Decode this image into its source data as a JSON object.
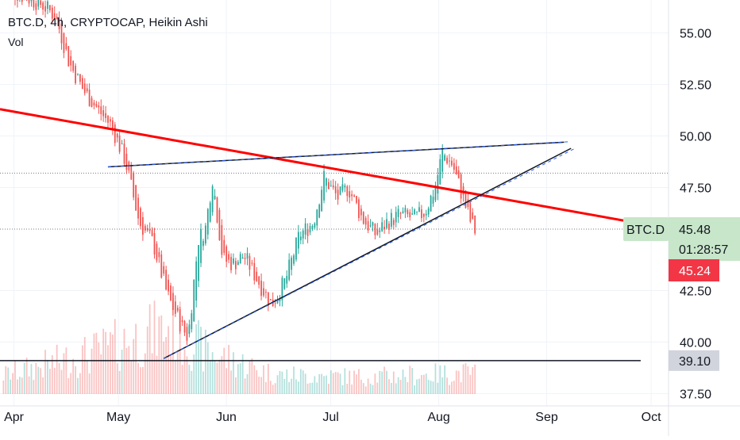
{
  "legend": {
    "symbol_line": "BTC.D, 4h, CRYPTOCAP, Heikin Ashi",
    "indicator": "Vol"
  },
  "chart_data": {
    "type": "candlestick",
    "chart_style": "Heikin Ashi",
    "symbol": "BTC.D",
    "timeframe": "4h",
    "exchange": "CRYPTOCAP",
    "indicator": "Vol",
    "x_ticks": [
      {
        "label": "Apr",
        "day": 0
      },
      {
        "label": "May",
        "day": 30
      },
      {
        "label": "Jun",
        "day": 61
      },
      {
        "label": "Jul",
        "day": 91
      },
      {
        "label": "Aug",
        "day": 122
      },
      {
        "label": "Sep",
        "day": 153
      },
      {
        "label": "Oct",
        "day": 183
      }
    ],
    "y_ticks": [
      37.5,
      40,
      42.5,
      47.5,
      50,
      52.5,
      55
    ],
    "ylim": [
      36.9,
      56.6
    ],
    "xlim": [
      -4,
      188
    ],
    "close_path": [
      [
        -3,
        57.2
      ],
      [
        8,
        56.4
      ],
      [
        12,
        55.8
      ],
      [
        16,
        53.5
      ],
      [
        20,
        52.2
      ],
      [
        25,
        51.1
      ],
      [
        28,
        50.5
      ],
      [
        32,
        48.8
      ],
      [
        36,
        45.8
      ],
      [
        40,
        44.8
      ],
      [
        44,
        42.3
      ],
      [
        48,
        40.8
      ],
      [
        50,
        40.2
      ],
      [
        53,
        45.0
      ],
      [
        55,
        45.5
      ],
      [
        57,
        48.0
      ],
      [
        60,
        44.0
      ],
      [
        63,
        43.8
      ],
      [
        66,
        44.2
      ],
      [
        70,
        43.0
      ],
      [
        74,
        41.8
      ],
      [
        78,
        43.0
      ],
      [
        82,
        45.2
      ],
      [
        86,
        45.8
      ],
      [
        89,
        48.0
      ],
      [
        93,
        47.0
      ],
      [
        96,
        47.5
      ],
      [
        100,
        46.0
      ],
      [
        104,
        45.2
      ],
      [
        107,
        45.8
      ],
      [
        111,
        46.2
      ],
      [
        115,
        46.0
      ],
      [
        118,
        46.3
      ],
      [
        121,
        47.5
      ],
      [
        123,
        49.2
      ],
      [
        126,
        48.6
      ],
      [
        128,
        47.5
      ],
      [
        131,
        45.9
      ],
      [
        133,
        45.2
      ]
    ],
    "volume": {
      "start_day": -3,
      "end_day": 133,
      "peak_values": [
        [
          -3,
          0.2
        ],
        [
          20,
          0.4
        ],
        [
          45,
          0.7
        ],
        [
          55,
          0.45
        ],
        [
          75,
          0.2
        ],
        [
          100,
          0.18
        ],
        [
          130,
          0.22
        ]
      ]
    },
    "trendlines": [
      {
        "name": "",
        "color": "#ff0000",
        "points": [
          [
            -4,
            51.3
          ],
          [
            175,
            45.9
          ]
        ]
      },
      {
        "name": "",
        "color": "#131722",
        "points": [
          [
            27,
            48.5
          ],
          [
            158,
            49.7
          ]
        ]
      },
      {
        "name": "",
        "color": "#131722",
        "points": [
          [
            43,
            39.2
          ],
          [
            160,
            49.4
          ]
        ]
      },
      {
        "name": "",
        "color": "#131722",
        "points": [
          [
            -4,
            39.1
          ],
          [
            180,
            39.1
          ]
        ]
      }
    ],
    "reference_lines": [
      {
        "value": 48.2,
        "style": "dotted"
      },
      {
        "value": 45.48,
        "style": "dotted"
      }
    ],
    "price_labels": [
      {
        "name": "BTC.D",
        "value": "45.48",
        "countdown": "01:28:57",
        "color": "#c8e6c9"
      },
      {
        "value": "45.24",
        "color": "#f23645"
      },
      {
        "value": "39.10",
        "color": "#d1d4dc"
      }
    ]
  }
}
